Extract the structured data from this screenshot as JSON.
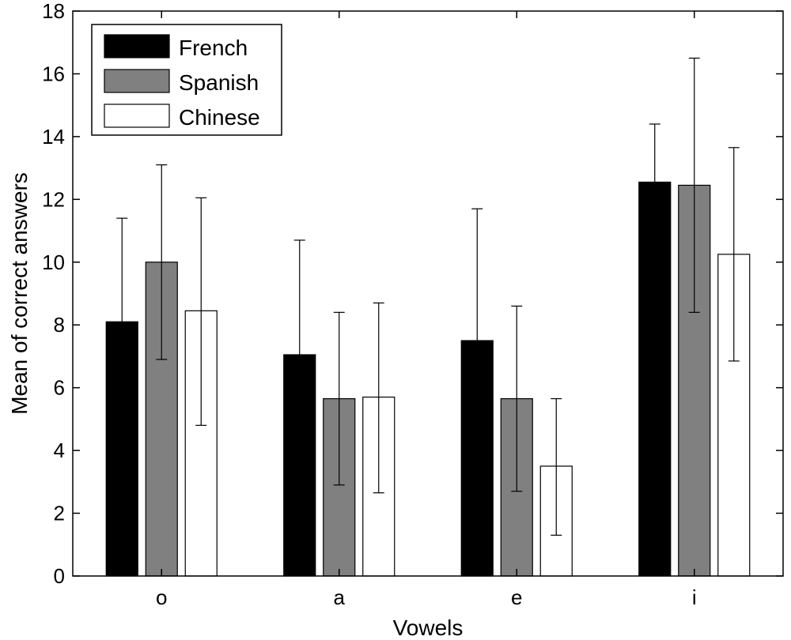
{
  "chart_data": {
    "type": "bar",
    "title": "",
    "xlabel": "Vowels",
    "ylabel": "Mean of correct answers",
    "ylim": [
      0,
      18
    ],
    "yticks": [
      0,
      2,
      4,
      6,
      8,
      10,
      12,
      14,
      16,
      18
    ],
    "categories": [
      "o",
      "a",
      "e",
      "i"
    ],
    "grid": false,
    "legend_position": "top-left",
    "series": [
      {
        "name": "French",
        "color": "#000000",
        "values": [
          8.1,
          7.05,
          7.5,
          12.55
        ],
        "error_low": [
          4.8,
          3.4,
          3.3,
          10.7
        ],
        "error_high": [
          11.4,
          10.7,
          11.7,
          14.4
        ]
      },
      {
        "name": "Spanish",
        "color": "#808080",
        "values": [
          10.0,
          5.65,
          5.65,
          12.45
        ],
        "error_low": [
          6.9,
          2.9,
          2.7,
          8.4
        ],
        "error_high": [
          13.1,
          8.4,
          8.6,
          16.5
        ]
      },
      {
        "name": "Chinese",
        "color": "#ffffff",
        "values": [
          8.45,
          5.7,
          3.5,
          10.25
        ],
        "error_low": [
          4.8,
          2.65,
          1.3,
          6.85
        ],
        "error_high": [
          12.05,
          8.7,
          5.65,
          13.65
        ]
      }
    ]
  }
}
